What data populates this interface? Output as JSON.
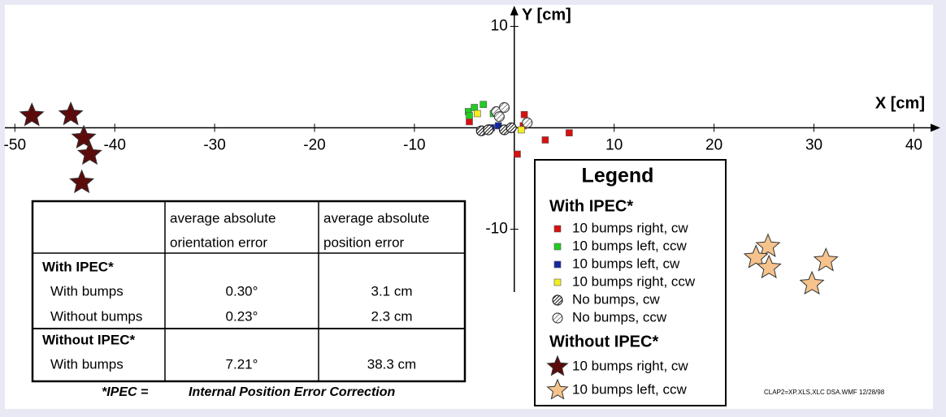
{
  "chart_data": {
    "type": "scatter",
    "xlabel": "X [cm]",
    "ylabel": "Y [cm]",
    "xlim": [
      -51,
      42
    ],
    "ylim": [
      -16.2,
      11.4
    ],
    "xticks": [
      -50,
      -40,
      -30,
      -20,
      -10,
      10,
      20,
      30,
      40
    ],
    "yticks": [
      10,
      -10
    ],
    "legend_title": "Legend",
    "legend_groups": [
      "With IPEC*",
      "Without IPEC*"
    ],
    "series": [
      {
        "name": "10 bumps right, cw",
        "group": 0,
        "marker": "square",
        "color": "#d81010",
        "x": [
          -4.5,
          1.0,
          3.1,
          5.5,
          0.3,
          0.9
        ],
        "values": [
          0.6,
          1.3,
          -1.2,
          -0.5,
          -2.6,
          0.2
        ]
      },
      {
        "name": "10 bumps left, ccw",
        "group": 0,
        "marker": "square",
        "color": "#22cc22",
        "x": [
          -4.6,
          -4.0,
          -3.1,
          -2.1,
          -4.5
        ],
        "values": [
          1.6,
          2.0,
          2.3,
          1.4,
          1.2
        ]
      },
      {
        "name": "10 bumps left, cw",
        "group": 0,
        "marker": "square",
        "color": "#1428a0",
        "x": [
          -2.3,
          -1.6
        ],
        "values": [
          0.0,
          0.2
        ]
      },
      {
        "name": "10 bumps right, ccw",
        "group": 0,
        "marker": "square",
        "color": "#f2ee20",
        "x": [
          0.7,
          -3.7
        ],
        "values": [
          -0.2,
          1.4
        ]
      },
      {
        "name": "No bumps, cw",
        "group": 0,
        "marker": "hatch-dark",
        "color": "#222222",
        "x": [
          -3.3,
          -2.6,
          -1.0,
          -0.3
        ],
        "values": [
          -0.3,
          -0.2,
          -0.2,
          0.0
        ]
      },
      {
        "name": "No bumps, ccw",
        "group": 0,
        "marker": "hatch-light",
        "color": "#444444",
        "x": [
          -1.8,
          -1.0,
          1.3,
          -1.5
        ],
        "values": [
          1.6,
          2.0,
          0.5,
          1.1
        ]
      },
      {
        "name": "10 bumps right, cw",
        "group": 1,
        "marker": "star",
        "color": "#5c0b0b",
        "x": [
          -48.3,
          -44.4,
          -43.1,
          -42.5,
          -43.3
        ],
        "values": [
          1.2,
          1.3,
          -1.0,
          -2.6,
          -5.4
        ]
      },
      {
        "name": "10 bumps left, ccw",
        "group": 1,
        "marker": "star",
        "color": "#f6c38c",
        "x": [
          25.4,
          24.2,
          25.5,
          31.2,
          29.8
        ],
        "values": [
          -11.7,
          -12.8,
          -13.8,
          -13.1,
          -15.4
        ]
      }
    ]
  },
  "table": {
    "header": [
      [
        "average absolute",
        "orientation error"
      ],
      [
        "average absolute",
        "position error"
      ]
    ],
    "groups": [
      {
        "label": "With IPEC*",
        "rows": [
          [
            "With bumps",
            "0.30°",
            "3.1 cm"
          ],
          [
            "Without bumps",
            "0.23°",
            "2.3 cm"
          ]
        ]
      },
      {
        "label": "Without IPEC*",
        "rows": [
          [
            "With bumps",
            "7.21°",
            "38.3 cm"
          ]
        ]
      }
    ]
  },
  "footnote": {
    "term": "*IPEC =",
    "definition": "Internal Position Error Correction"
  },
  "file_stamp": "CLAP2=XP.XLS,XLC DSA.WMF 12/28/98"
}
